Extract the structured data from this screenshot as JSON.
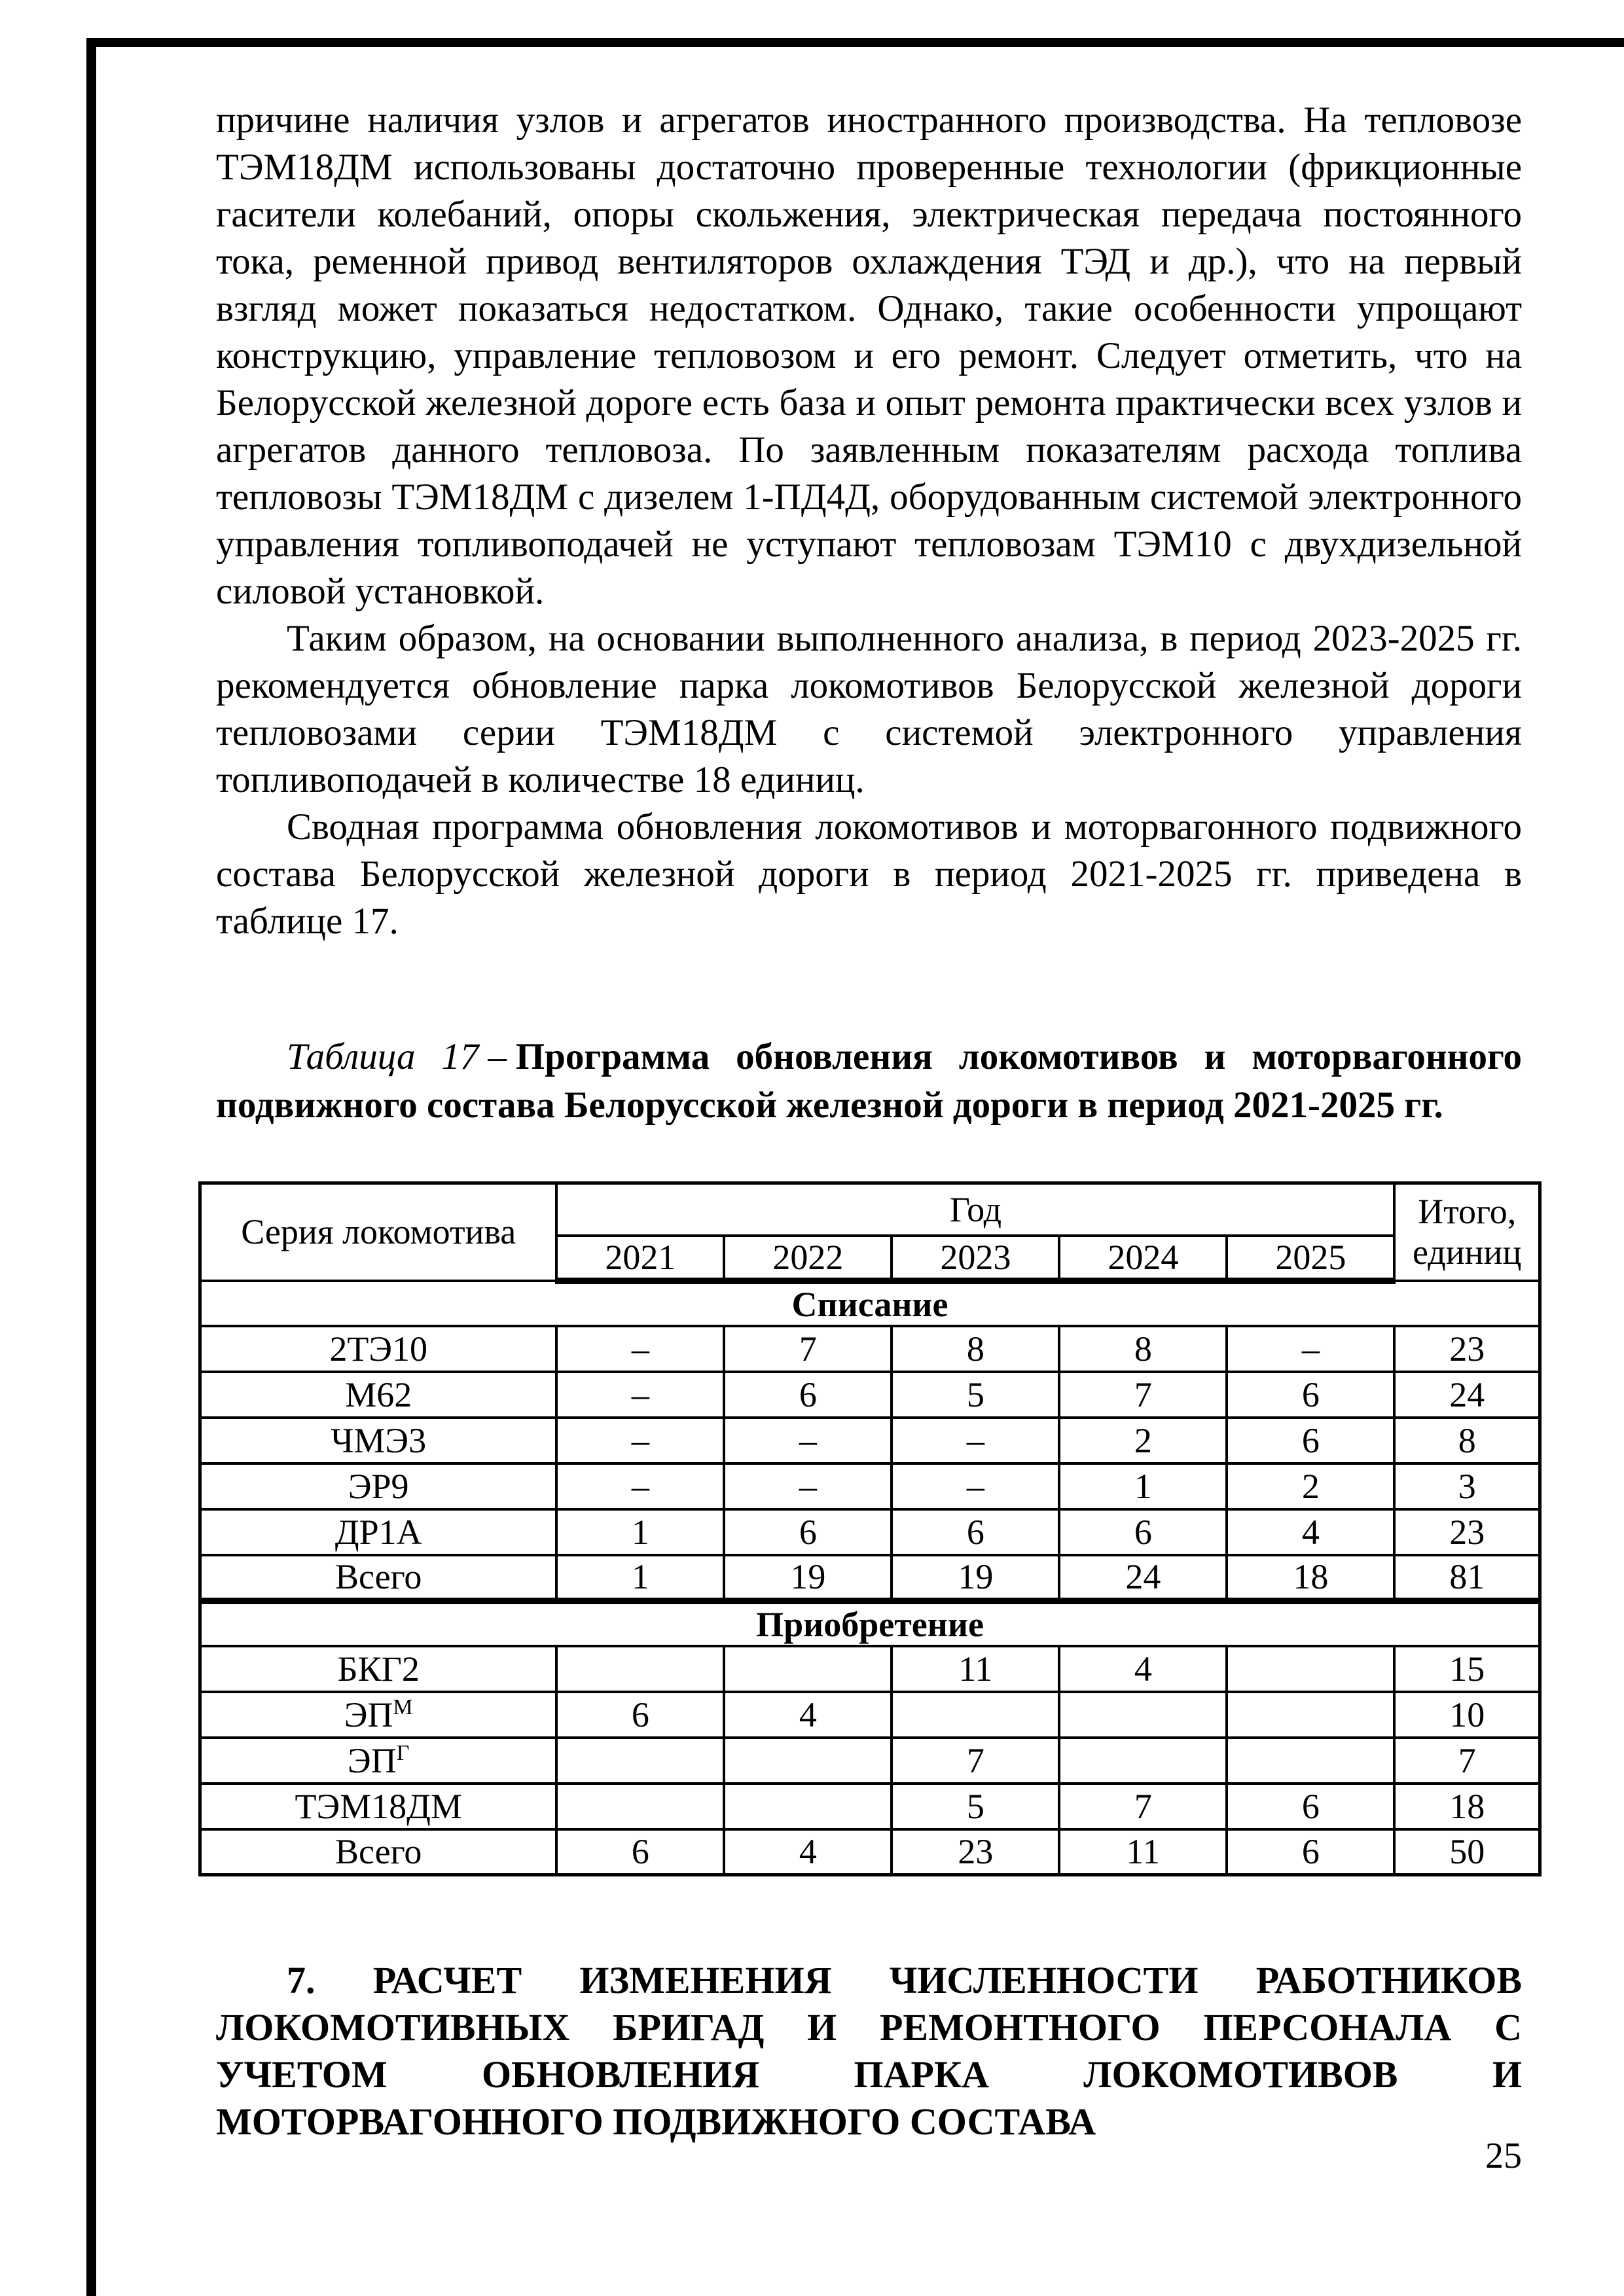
{
  "page": {
    "number": "25"
  },
  "paragraphs": [
    {
      "text": "причине наличия узлов и агрегатов иностранного производства. На тепловозе ТЭМ18ДМ использованы достаточно проверенные технологии (фрикционные гасители колебаний, опоры скольжения, электрическая передача постоянного тока, ременной привод вентиляторов охлаждения ТЭД и др.), что на первый взгляд может показаться недостатком. Однако, такие особенности упрощают конструкцию, управление тепловозом и его ремонт. Следует отметить, что на Белорусской железной дороге есть база и опыт ремонта практически всех узлов и агрегатов данного тепловоза. По заявленным показателям расхода топлива тепловозы ТЭМ18ДМ с дизелем 1-ПД4Д, оборудованным системой электронного управления топливоподачей не уступают тепловозам ТЭМ10 с двухдизельной силовой установкой."
    },
    {
      "text": "Таким образом, на основании выполненного анализа, в период 2023-2025 гг. рекомендуется обновление парка локомотивов Белорусской железной дороги тепловозами серии ТЭМ18ДМ с системой электронного управления топливоподачей в количестве 18 единиц."
    },
    {
      "text": "Сводная программа обновления локомотивов и моторвагонного подвижного состава Белорусской железной дороги в период 2021-2025 гг. приведена в таблице 17."
    }
  ],
  "table_caption": {
    "label": "Таблица 17",
    "dash": "–",
    "title": "Программа обновления локомотивов и моторвагонного подвижного состава Белорусской железной дороги в период 2021-2025 гг."
  },
  "table": {
    "header": {
      "series": "Серия локомотива",
      "year_group": "Год",
      "years": [
        "2021",
        "2022",
        "2023",
        "2024",
        "2025"
      ],
      "total_line1": "Итого,",
      "total_line2": "единиц"
    },
    "sections": [
      {
        "title": "Списание",
        "rows": [
          {
            "label": "2ТЭ10",
            "values": [
              "–",
              "7",
              "8",
              "8",
              "–"
            ],
            "total": "23"
          },
          {
            "label": "М62",
            "values": [
              "–",
              "6",
              "5",
              "7",
              "6"
            ],
            "total": "24"
          },
          {
            "label": "ЧМЭ3",
            "values": [
              "–",
              "–",
              "–",
              "2",
              "6"
            ],
            "total": "8"
          },
          {
            "label": "ЭР9",
            "values": [
              "–",
              "–",
              "–",
              "1",
              "2"
            ],
            "total": "3"
          },
          {
            "label": "ДР1А",
            "values": [
              "1",
              "6",
              "6",
              "6",
              "4"
            ],
            "total": "23"
          },
          {
            "label": "Всего",
            "values": [
              "1",
              "19",
              "19",
              "24",
              "18"
            ],
            "total": "81"
          }
        ]
      },
      {
        "title": "Приобретение",
        "rows": [
          {
            "label": "БКГ2",
            "values": [
              "",
              "",
              "11",
              "4",
              ""
            ],
            "total": "15"
          },
          {
            "label": "ЭП",
            "label_sup": "М",
            "values": [
              "6",
              "4",
              "",
              "",
              ""
            ],
            "total": "10"
          },
          {
            "label": "ЭП",
            "label_sup": "Г",
            "values": [
              "",
              "",
              "7",
              "",
              ""
            ],
            "total": "7"
          },
          {
            "label": "ТЭМ18ДМ",
            "values": [
              "",
              "",
              "5",
              "7",
              "6"
            ],
            "total": "18"
          },
          {
            "label": "Всего",
            "values": [
              "6",
              "4",
              "23",
              "11",
              "6"
            ],
            "total": "50"
          }
        ]
      }
    ]
  },
  "section_heading": {
    "lines": [
      "7. РАСЧЕТ ИЗМЕНЕНИЯ ЧИСЛЕННОСТИ РАБОТНИКОВ",
      "ЛОКОМОТИВНЫХ БРИГАД И РЕМОНТНОГО ПЕРСОНАЛА С",
      "УЧЕТОМ ОБНОВЛЕНИЯ ПАРКА ЛОКОМОТИВОВ И",
      "МОТОРВАГОННОГО ПОДВИЖНОГО СОСТАВА"
    ]
  }
}
